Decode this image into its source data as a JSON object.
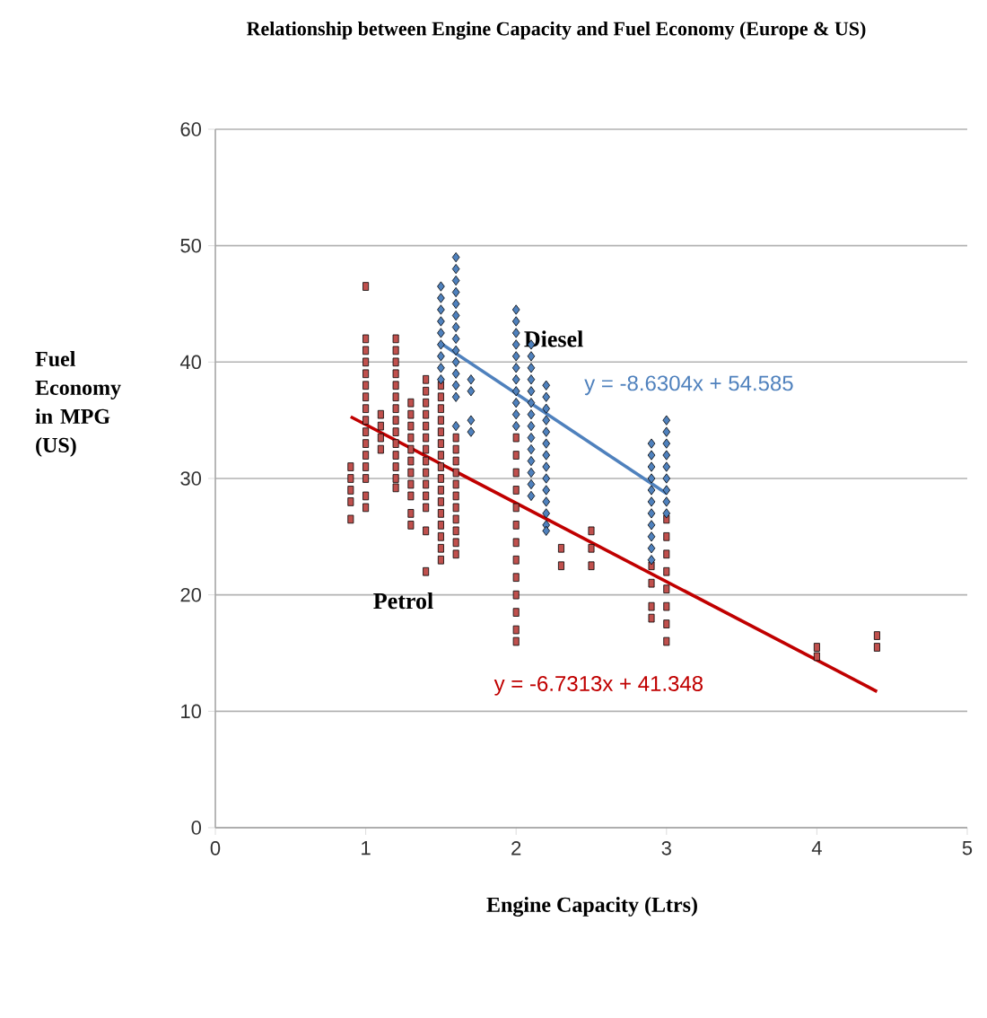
{
  "chart_data": {
    "type": "scatter",
    "title": "Relationship between Engine Capacity and Fuel Economy (Europe & US)",
    "xlabel": "Engine Capacity  (Ltrs)",
    "ylabel": "Fuel Economy in MPG (US)",
    "xlim": [
      0,
      5
    ],
    "ylim": [
      0,
      60
    ],
    "xticks": [
      0,
      1,
      2,
      3,
      4,
      5
    ],
    "yticks": [
      0,
      10,
      20,
      30,
      40,
      50,
      60
    ],
    "grid": "y",
    "series": [
      {
        "name": "Petrol",
        "color": "#c0504d",
        "marker": "square",
        "x": [
          0.9,
          0.9,
          0.9,
          0.9,
          0.9,
          1.0,
          1.0,
          1.0,
          1.0,
          1.0,
          1.0,
          1.0,
          1.0,
          1.0,
          1.0,
          1.0,
          1.0,
          1.0,
          1.0,
          1.0,
          1.0,
          1.1,
          1.1,
          1.1,
          1.1,
          1.2,
          1.2,
          1.2,
          1.2,
          1.2,
          1.2,
          1.2,
          1.2,
          1.2,
          1.2,
          1.2,
          1.2,
          1.2,
          1.2,
          1.3,
          1.3,
          1.3,
          1.3,
          1.3,
          1.3,
          1.3,
          1.3,
          1.3,
          1.3,
          1.3,
          1.4,
          1.4,
          1.4,
          1.4,
          1.4,
          1.4,
          1.4,
          1.4,
          1.4,
          1.4,
          1.4,
          1.4,
          1.4,
          1.4,
          1.5,
          1.5,
          1.5,
          1.5,
          1.5,
          1.5,
          1.5,
          1.5,
          1.5,
          1.5,
          1.5,
          1.5,
          1.5,
          1.5,
          1.5,
          1.5,
          1.6,
          1.6,
          1.6,
          1.6,
          1.6,
          1.6,
          1.6,
          1.6,
          1.6,
          1.6,
          1.6,
          2.0,
          2.0,
          2.0,
          2.0,
          2.0,
          2.0,
          2.0,
          2.0,
          2.0,
          2.0,
          2.0,
          2.0,
          2.0,
          2.3,
          2.3,
          2.5,
          2.5,
          2.5,
          2.9,
          2.9,
          2.9,
          2.9,
          3.0,
          3.0,
          3.0,
          3.0,
          3.0,
          3.0,
          3.0,
          3.0,
          4.0,
          4.0,
          4.4,
          4.4
        ],
        "values": [
          31,
          30,
          29,
          28,
          26.5,
          46.5,
          42,
          41,
          40,
          39,
          38,
          37,
          36,
          35,
          34,
          33,
          32,
          31,
          30,
          28.5,
          27.5,
          35.5,
          34.5,
          33.5,
          32.5,
          42,
          41,
          40,
          39,
          38,
          37,
          36,
          35,
          34,
          33,
          32,
          31,
          30,
          29.2,
          36.5,
          35.5,
          34.5,
          33.5,
          32.5,
          31.5,
          30.5,
          29.5,
          28.5,
          27,
          26,
          38.5,
          37.5,
          36.5,
          35.5,
          34.5,
          33.5,
          32.5,
          31.5,
          30.5,
          29.5,
          28.5,
          27.5,
          25.5,
          22,
          38,
          37,
          36,
          35,
          34,
          33,
          32,
          31,
          30,
          29,
          28,
          27,
          26,
          25,
          24,
          23,
          33.5,
          32.5,
          31.5,
          30.5,
          29.5,
          28.5,
          27.5,
          26.5,
          25.5,
          24.5,
          23.5,
          33.5,
          32,
          30.5,
          29,
          27.5,
          26,
          24.5,
          23,
          21.5,
          20,
          18.5,
          17,
          16,
          24,
          22.5,
          25.5,
          24,
          22.5,
          22.5,
          21,
          19,
          18,
          26.5,
          25,
          23.5,
          22,
          20.5,
          19,
          17.5,
          16,
          15.5,
          14.7,
          16.5,
          15.5
        ]
      },
      {
        "name": "Diesel",
        "color": "#4f81bd",
        "marker": "diamond",
        "x": [
          1.5,
          1.5,
          1.5,
          1.5,
          1.5,
          1.5,
          1.5,
          1.5,
          1.5,
          1.6,
          1.6,
          1.6,
          1.6,
          1.6,
          1.6,
          1.6,
          1.6,
          1.6,
          1.6,
          1.6,
          1.6,
          1.6,
          1.6,
          1.7,
          1.7,
          1.7,
          1.7,
          2.0,
          2.0,
          2.0,
          2.0,
          2.0,
          2.0,
          2.0,
          2.0,
          2.0,
          2.0,
          2.0,
          2.1,
          2.1,
          2.1,
          2.1,
          2.1,
          2.1,
          2.1,
          2.1,
          2.1,
          2.1,
          2.1,
          2.1,
          2.1,
          2.1,
          2.2,
          2.2,
          2.2,
          2.2,
          2.2,
          2.2,
          2.2,
          2.2,
          2.2,
          2.2,
          2.2,
          2.2,
          2.2,
          2.2,
          2.9,
          2.9,
          2.9,
          2.9,
          2.9,
          2.9,
          2.9,
          2.9,
          2.9,
          2.9,
          2.9,
          3.0,
          3.0,
          3.0,
          3.0,
          3.0,
          3.0,
          3.0,
          3.0,
          3.0
        ],
        "values": [
          46.5,
          45.5,
          44.5,
          43.5,
          42.5,
          41.5,
          40.5,
          39.5,
          38.5,
          49,
          48,
          47,
          46,
          45,
          44,
          43,
          42,
          41,
          40,
          39,
          38,
          37,
          34.5,
          38.5,
          37.5,
          35,
          34,
          44.5,
          43.5,
          42.5,
          41.5,
          40.5,
          39.5,
          38.5,
          37.5,
          36.5,
          35.5,
          34.5,
          41.5,
          40.5,
          39.5,
          38.5,
          37.5,
          36.5,
          35.5,
          34.5,
          33.5,
          32.5,
          31.5,
          30.5,
          29.5,
          28.5,
          38,
          37,
          36,
          35,
          34,
          33,
          32,
          31,
          30,
          29,
          28,
          27,
          26,
          25.5,
          33,
          32,
          31,
          30,
          29,
          28,
          27,
          26,
          25,
          24,
          23,
          35,
          34,
          33,
          32,
          31,
          30,
          29,
          28,
          27
        ]
      },
      {
        "type": "line",
        "color": "#4f81bd",
        "line_style": "solid",
        "x": [
          1.5,
          3.0
        ],
        "values": [
          41.6,
          28.7
        ]
      },
      {
        "type": "line",
        "color": "#c00000",
        "line_style": "solid",
        "x": [
          0.9,
          4.4
        ],
        "values": [
          35.3,
          11.7
        ]
      }
    ],
    "annotations": [
      "y = -8.6304x + 54.585",
      "y = -6.7313x + 41.348"
    ]
  }
}
